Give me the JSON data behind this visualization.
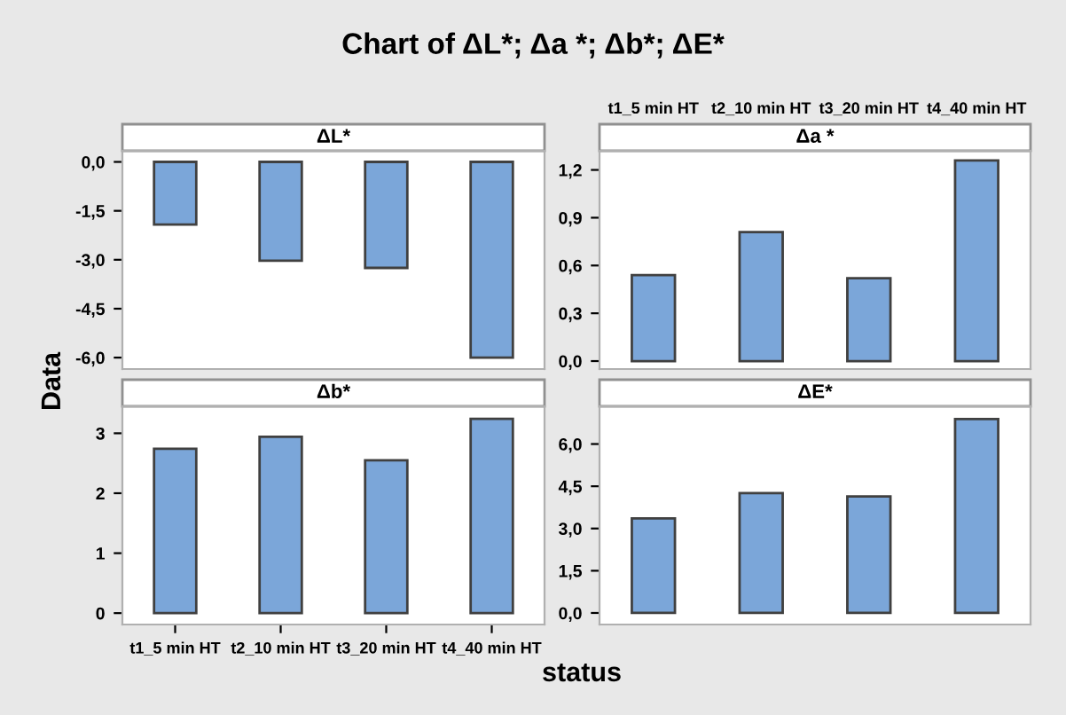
{
  "chart_data": [
    {
      "type": "bar",
      "title": "ΔL*",
      "annotations": [
        "Chart of ΔL*; Δa *; Δb*; ΔE*"
      ],
      "ylabel": "Data",
      "categories": [
        null,
        null,
        null,
        null
      ],
      "values": [
        -1.92,
        -3.03,
        -3.25,
        -6.0
      ],
      "color": "#7ba6d9",
      "ylim": [
        -6.35,
        0.34
      ],
      "yticks": [
        {
          "value": 0,
          "label": "0,0"
        },
        {
          "value": -1.5,
          "label": "-1,5"
        },
        {
          "value": -3,
          "label": "-3,0"
        },
        {
          "value": -4.5,
          "label": "-4,5"
        },
        {
          "value": -6,
          "label": "-6,0"
        }
      ],
      "tick_labels": "y"
    },
    {
      "type": "bar",
      "title": "Δa *",
      "categories": [
        "t1_5 min HT",
        "t2_10 min HT",
        "t3_20 min HT",
        "t4_40 min HT"
      ],
      "values": [
        0.54,
        0.81,
        0.52,
        1.26
      ],
      "color": "#7ba6d9",
      "ylim": [
        -0.05,
        1.32
      ],
      "yticks": [
        {
          "value": 0,
          "label": "0,0"
        },
        {
          "value": 0.3,
          "label": "0,3"
        },
        {
          "value": 0.6,
          "label": "0,6"
        },
        {
          "value": 0.9,
          "label": "0,9"
        },
        {
          "value": 1.2,
          "label": "1,2"
        }
      ]
    },
    {
      "type": "bar",
      "title": "Δb*",
      "xlabel": "status",
      "categories": [
        "t1_5 min HT",
        "t2_10 min HT",
        "t3_20 min HT",
        "t4_40 min HT"
      ],
      "values": [
        2.74,
        2.94,
        2.55,
        3.24
      ],
      "color": "#7ba6d9",
      "ylim": [
        -0.19,
        3.45
      ],
      "yticks": [
        0,
        1,
        2,
        3
      ]
    },
    {
      "type": "bar",
      "title": "ΔE*",
      "categories": [
        null,
        null,
        null,
        null
      ],
      "values": [
        3.36,
        4.26,
        4.14,
        6.89
      ],
      "color": "#7ba6d9",
      "ylim": [
        -0.41,
        7.34
      ],
      "yticks": [
        {
          "value": 0,
          "label": "0,0"
        },
        {
          "value": 1.5,
          "label": "1,5"
        },
        {
          "value": 3,
          "label": "3,0"
        },
        {
          "value": 4.5,
          "label": "4,5"
        },
        {
          "value": 6,
          "label": "6,0"
        }
      ],
      "tick_labels": "y"
    }
  ]
}
